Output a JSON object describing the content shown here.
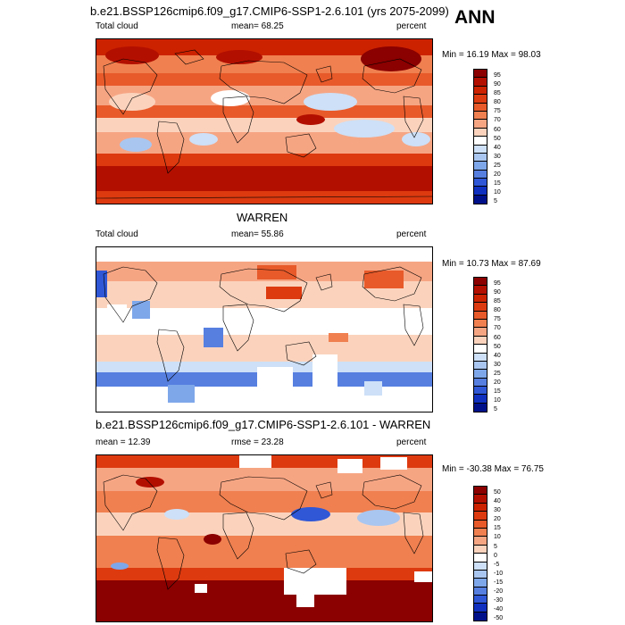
{
  "season": "ANN",
  "panels": [
    {
      "title": "b.e21.BSSP126cmip6.f09_g17.CMIP6-SSP1-2.6.101 (yrs 2075-2099)",
      "left_label": "Total cloud",
      "stat_label": "mean=  68.25",
      "units": "percent",
      "minmax": "Min = 16.19 Max = 98.03",
      "colorbar_labels": [
        "95",
        "90",
        "85",
        "80",
        "75",
        "70",
        "60",
        "50",
        "40",
        "30",
        "25",
        "20",
        "15",
        "10",
        "5"
      ]
    },
    {
      "title": "WARREN",
      "left_label": "Total cloud",
      "stat_label": "mean=  55.86",
      "units": "percent",
      "minmax": "Min = 10.73 Max = 87.69",
      "colorbar_labels": [
        "95",
        "90",
        "85",
        "80",
        "75",
        "70",
        "60",
        "50",
        "40",
        "30",
        "25",
        "20",
        "15",
        "10",
        "5"
      ]
    },
    {
      "title": "b.e21.BSSP126cmip6.f09_g17.CMIP6-SSP1-2.6.101 - WARREN",
      "left_label": "mean =  12.39",
      "stat_label": "rmse =  23.28",
      "units": "percent",
      "minmax": "Min = -30.38 Max = 76.75",
      "colorbar_labels": [
        "50",
        "40",
        "30",
        "20",
        "15",
        "10",
        "5",
        "0",
        "-5",
        "-10",
        "-15",
        "-20",
        "-30",
        "-40",
        "-50"
      ]
    }
  ],
  "colorbar_colors": [
    "#8b0000",
    "#b30f00",
    "#cc2200",
    "#dd3a10",
    "#e85a2a",
    "#f08050",
    "#f6a583",
    "#fbd3bd",
    "#ffffff",
    "#cde0f7",
    "#a9c6f0",
    "#7ea7ea",
    "#567fe0",
    "#2f57d6",
    "#1030c0",
    "#00108a"
  ]
}
